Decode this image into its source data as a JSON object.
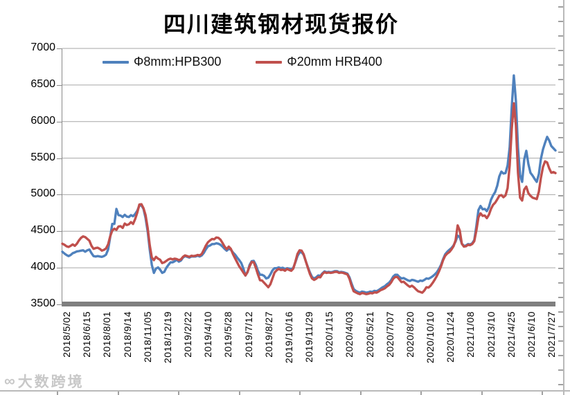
{
  "watermark": {
    "icon": "∞",
    "text": "大数跨境"
  },
  "chart_data": {
    "type": "line",
    "title": "四川建筑钢材现货报价",
    "xlabel": "",
    "ylabel": "",
    "y_min": 3500,
    "y_max": 7000,
    "y_step": 500,
    "y_ticks": [
      7000,
      6500,
      6000,
      5500,
      5000,
      4500,
      4000,
      3500
    ],
    "grid": "horizontal",
    "legend_position": "top",
    "categories": [
      "2018/5/02",
      "2018/6/15",
      "2018/8/01",
      "2018/9/14",
      "2018/11/05",
      "2018/12/19",
      "2019/2/22",
      "2019/4/10",
      "2019/5/28",
      "2019/7/12",
      "2019/8/27",
      "2019/10/16",
      "2019/11/29",
      "2020/1/15",
      "2020/4/03",
      "2020/5/21",
      "2020/7/07",
      "2020/8/20",
      "2020/10/10",
      "2020/11/24",
      "2021/1/08",
      "2021/3/10",
      "2021/4/25",
      "2021/6/10",
      "2021/7/27"
    ],
    "sampling_note": "values are uniform samples from 2018/5/02 to 2021/7/27, estimated from plot",
    "series": [
      {
        "name": "Φ8mm:HPB300",
        "color": "#4f81bd",
        "values": [
          4220,
          4195,
          4175,
          4160,
          4175,
          4200,
          4210,
          4225,
          4228,
          4235,
          4240,
          4220,
          4240,
          4250,
          4200,
          4160,
          4155,
          4160,
          4155,
          4150,
          4160,
          4180,
          4250,
          4420,
          4600,
          4600,
          4805,
          4720,
          4715,
          4695,
          4725,
          4700,
          4695,
          4720,
          4705,
          4735,
          4780,
          4850,
          4855,
          4805,
          4680,
          4500,
          4250,
          4040,
          3930,
          3990,
          4005,
          3975,
          3930,
          3945,
          4000,
          4040,
          4075,
          4075,
          4090,
          4110,
          4085,
          4100,
          4140,
          4160,
          4150,
          4140,
          4155,
          4155,
          4155,
          4165,
          4155,
          4170,
          4205,
          4255,
          4295,
          4305,
          4325,
          4325,
          4335,
          4330,
          4315,
          4290,
          4260,
          4235,
          4260,
          4250,
          4210,
          4180,
          4140,
          4105,
          4065,
          3990,
          3895,
          3940,
          4040,
          4090,
          4095,
          4040,
          3960,
          3905,
          3905,
          3890,
          3855,
          3865,
          3910,
          3965,
          3995,
          3995,
          4005,
          3995,
          4000,
          3985,
          3995,
          3990,
          3980,
          4000,
          4075,
          4160,
          4210,
          4215,
          4175,
          4090,
          4010,
          3935,
          3875,
          3855,
          3870,
          3895,
          3890,
          3925,
          3950,
          3940,
          3945,
          3940,
          3945,
          3955,
          3955,
          3940,
          3945,
          3940,
          3930,
          3920,
          3870,
          3785,
          3710,
          3685,
          3670,
          3660,
          3675,
          3670,
          3660,
          3665,
          3675,
          3670,
          3685,
          3680,
          3695,
          3715,
          3735,
          3750,
          3775,
          3795,
          3830,
          3880,
          3905,
          3905,
          3875,
          3855,
          3860,
          3845,
          3830,
          3820,
          3835,
          3830,
          3820,
          3810,
          3825,
          3820,
          3835,
          3855,
          3850,
          3865,
          3885,
          3910,
          3940,
          3985,
          4040,
          4120,
          4185,
          4220,
          4245,
          4270,
          4305,
          4360,
          4440,
          4420,
          4330,
          4300,
          4305,
          4325,
          4320,
          4335,
          4380,
          4570,
          4790,
          4845,
          4800,
          4805,
          4775,
          4830,
          4930,
          4990,
          5035,
          5120,
          5250,
          5315,
          5290,
          5295,
          5400,
          5650,
          6200,
          6630,
          6280,
          5640,
          5270,
          5175,
          5480,
          5600,
          5420,
          5300,
          5260,
          5215,
          5175,
          5280,
          5490,
          5620,
          5710,
          5790,
          5740,
          5665,
          5635,
          5605
        ]
      },
      {
        "name": "Φ20mm HRB400",
        "color": "#c0504d",
        "values": [
          4330,
          4315,
          4295,
          4285,
          4300,
          4320,
          4300,
          4330,
          4375,
          4410,
          4430,
          4420,
          4395,
          4370,
          4300,
          4260,
          4270,
          4275,
          4260,
          4235,
          4245,
          4265,
          4320,
          4430,
          4510,
          4535,
          4520,
          4565,
          4570,
          4545,
          4605,
          4585,
          4595,
          4625,
          4600,
          4665,
          4755,
          4865,
          4870,
          4815,
          4720,
          4545,
          4310,
          4140,
          4105,
          4150,
          4125,
          4110,
          4065,
          4075,
          4095,
          4115,
          4125,
          4115,
          4125,
          4120,
          4105,
          4115,
          4150,
          4170,
          4160,
          4150,
          4165,
          4160,
          4165,
          4175,
          4170,
          4190,
          4245,
          4305,
          4350,
          4375,
          4395,
          4390,
          4415,
          4410,
          4385,
          4340,
          4290,
          4255,
          4290,
          4260,
          4190,
          4130,
          4075,
          4020,
          3980,
          3935,
          3895,
          3945,
          4020,
          4080,
          4075,
          4000,
          3910,
          3830,
          3825,
          3795,
          3765,
          3735,
          3775,
          3855,
          3935,
          3965,
          3985,
          3970,
          3975,
          3960,
          3985,
          3970,
          3960,
          3990,
          4085,
          4190,
          4240,
          4235,
          4185,
          4090,
          4000,
          3915,
          3855,
          3835,
          3850,
          3875,
          3870,
          3915,
          3940,
          3930,
          3935,
          3930,
          3935,
          3945,
          3945,
          3930,
          3935,
          3930,
          3920,
          3910,
          3850,
          3755,
          3680,
          3665,
          3650,
          3640,
          3655,
          3650,
          3640,
          3645,
          3655,
          3650,
          3665,
          3660,
          3675,
          3695,
          3705,
          3720,
          3745,
          3765,
          3800,
          3850,
          3875,
          3875,
          3840,
          3805,
          3810,
          3785,
          3760,
          3740,
          3755,
          3735,
          3705,
          3680,
          3670,
          3660,
          3690,
          3735,
          3730,
          3755,
          3795,
          3840,
          3890,
          3950,
          4020,
          4105,
          4165,
          4195,
          4215,
          4250,
          4295,
          4375,
          4580,
          4510,
          4330,
          4290,
          4295,
          4315,
          4310,
          4325,
          4365,
          4510,
          4690,
          4745,
          4710,
          4715,
          4680,
          4725,
          4805,
          4860,
          4890,
          4935,
          4985,
          4995,
          4965,
          4990,
          5090,
          5400,
          5900,
          6250,
          5950,
          5300,
          4960,
          4920,
          5070,
          5110,
          5020,
          4985,
          4960,
          4950,
          4940,
          5040,
          5230,
          5380,
          5455,
          5440,
          5360,
          5300,
          5310,
          5295
        ]
      }
    ]
  }
}
